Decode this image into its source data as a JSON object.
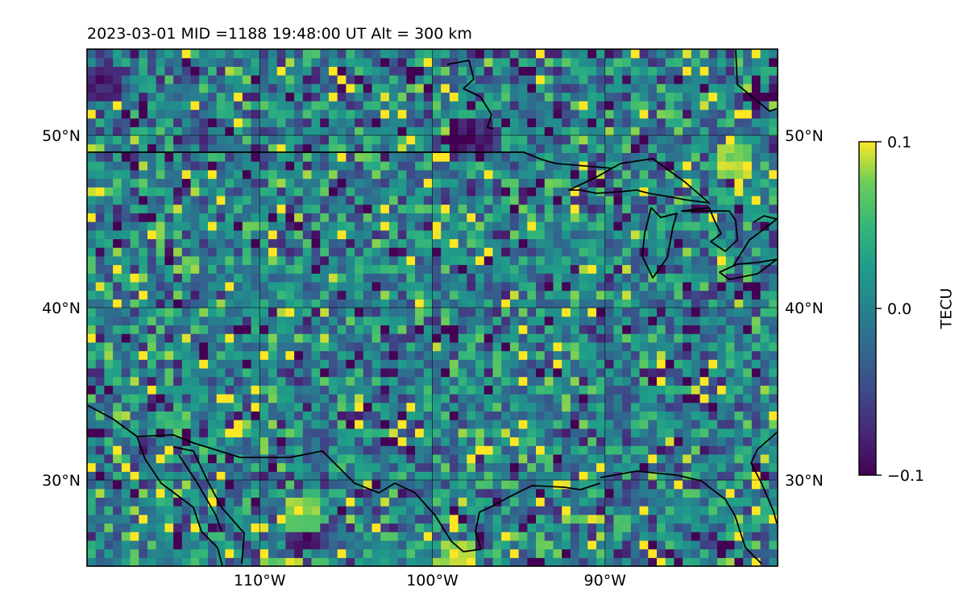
{
  "chart_data": {
    "type": "heatmap",
    "title": "2023-03-01  MID =1188    19:48:00  UT  Alt = 300 km",
    "projection": "lat-lon map",
    "xlim": [
      -120,
      -80
    ],
    "ylim": [
      25,
      55
    ],
    "x_ticks": [
      {
        "value": -110,
        "label": "110°W"
      },
      {
        "value": -100,
        "label": "100°W"
      },
      {
        "value": -90,
        "label": "90°W"
      }
    ],
    "y_ticks": [
      {
        "value": 50,
        "label": "50°N"
      },
      {
        "value": 40,
        "label": "40°N"
      },
      {
        "value": 30,
        "label": "30°N"
      }
    ],
    "grid": true,
    "colormap": "viridis",
    "colorbar": {
      "label": "TECU",
      "range": [
        -0.1,
        0.1
      ],
      "ticks": [
        {
          "value": 0.1,
          "label": "0.1"
        },
        {
          "value": 0.0,
          "label": "0.0"
        },
        {
          "value": -0.1,
          "label": "−0.1"
        }
      ],
      "placement": "right"
    },
    "field_summary": {
      "mean": 0.0,
      "texture": "noisy small-scale mottling around 0 TECU",
      "notable_lows": [
        {
          "lon": -119,
          "lat": 53,
          "value": -0.1
        },
        {
          "lon": -97.5,
          "lat": 50,
          "value": -0.1
        },
        {
          "lon": -107.5,
          "lat": 27,
          "value": -0.1
        }
      ],
      "notable_highs": [
        {
          "lon": -107.5,
          "lat": 28,
          "value": 0.1
        },
        {
          "lon": -98.5,
          "lat": 25.5,
          "value": 0.1
        },
        {
          "lon": -82.5,
          "lat": 48.5,
          "value": 0.1
        }
      ]
    },
    "overlays": [
      "coastlines",
      "national borders"
    ]
  }
}
